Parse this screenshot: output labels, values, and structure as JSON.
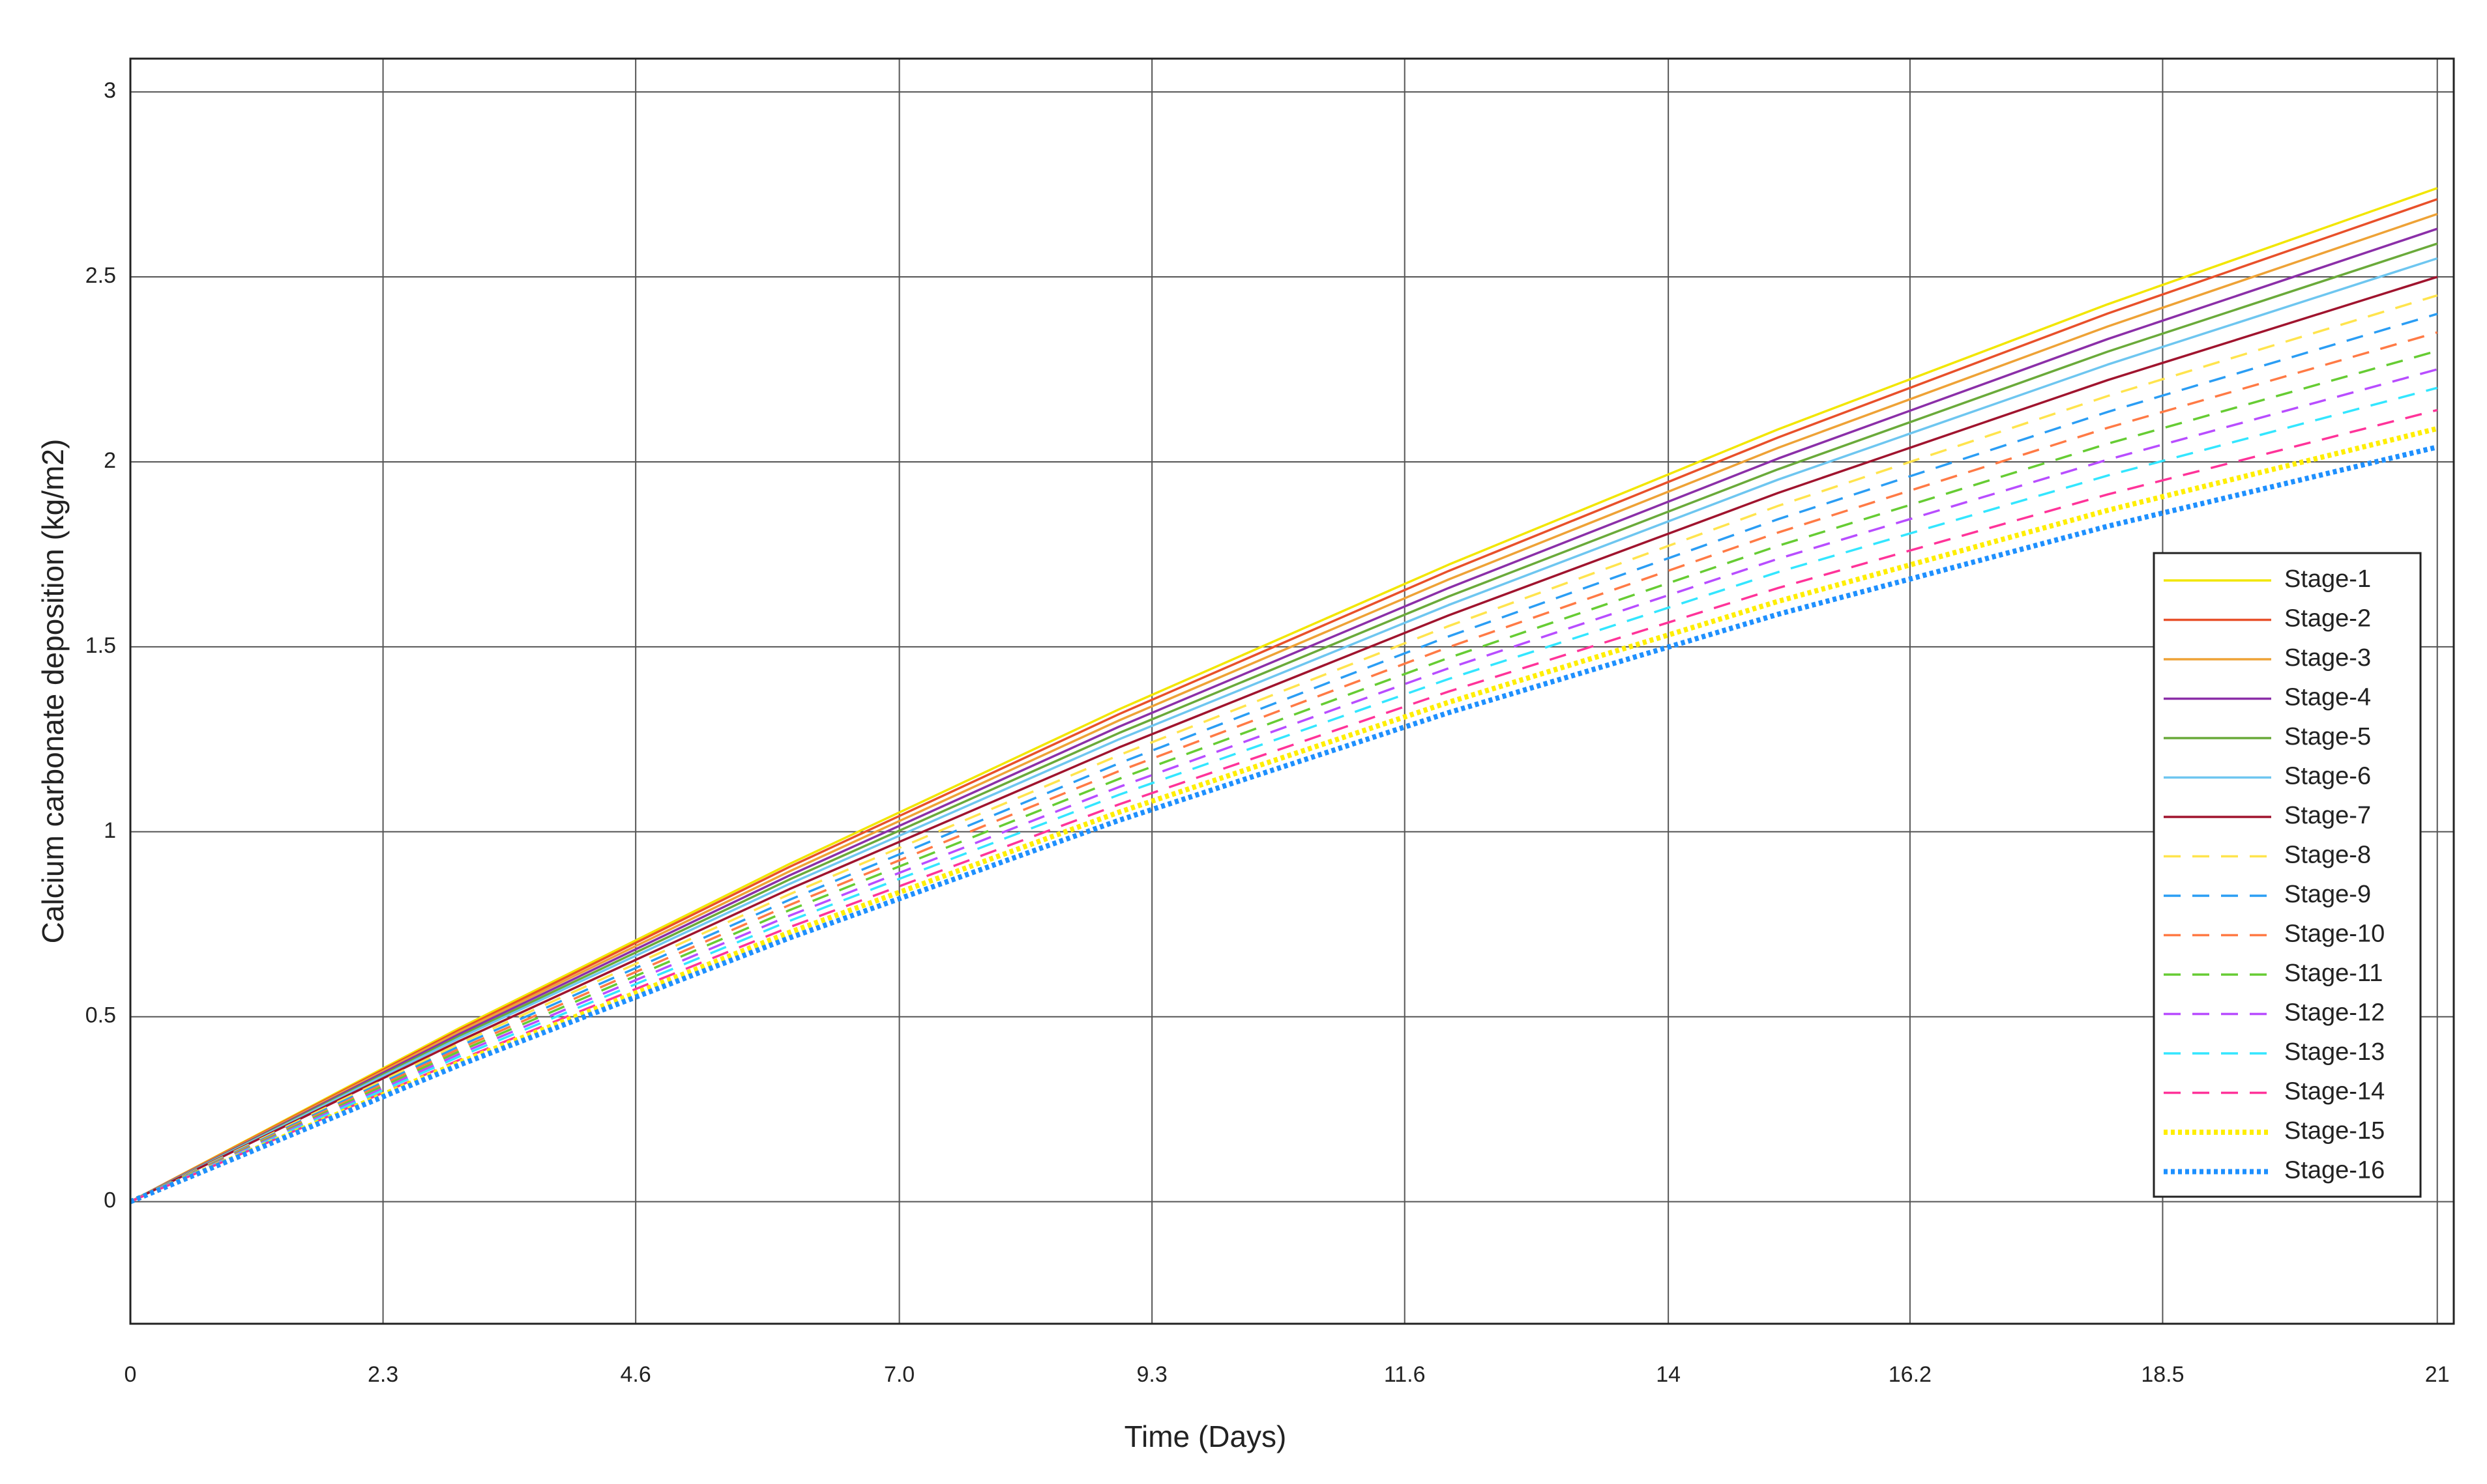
{
  "chart_data": {
    "type": "line",
    "xlabel": "Time (Days)",
    "ylabel": "Calcium carbonate deposition (kg/m2)",
    "x": [
      0,
      3,
      6,
      9,
      12,
      15,
      18,
      21
    ],
    "xlim": [
      0,
      21.15
    ],
    "ylim": [
      -0.33,
      3.09
    ],
    "xticks": [
      0,
      2.3,
      4.6,
      {
        "value": 7,
        "label": "7.0"
      },
      9.3,
      11.6,
      14,
      16.2,
      18.5,
      21
    ],
    "yticks": [
      0,
      0.5,
      1,
      1.5,
      2,
      2.5,
      3
    ],
    "grid": true,
    "legend": "right",
    "series": [
      {
        "name": "Stage-1",
        "color": "#f2e600",
        "style": "solid",
        "values": [
          0,
          0.47,
          0.913,
          1.331,
          1.722,
          2.088,
          2.426,
          2.74
        ]
      },
      {
        "name": "Stage-2",
        "color": "#e8502a",
        "style": "solid",
        "values": [
          0,
          0.465,
          0.905,
          1.318,
          1.705,
          2.066,
          2.401,
          2.71
        ]
      },
      {
        "name": "Stage-3",
        "color": "#eea236",
        "style": "solid",
        "values": [
          0,
          0.46,
          0.893,
          1.301,
          1.682,
          2.038,
          2.366,
          2.67
        ]
      },
      {
        "name": "Stage-4",
        "color": "#8b2fa8",
        "style": "solid",
        "values": [
          0,
          0.454,
          0.882,
          1.284,
          1.659,
          2.009,
          2.332,
          2.63
        ]
      },
      {
        "name": "Stage-5",
        "color": "#6aaa3a",
        "style": "solid",
        "values": [
          0,
          0.448,
          0.871,
          1.267,
          1.636,
          1.98,
          2.298,
          2.59
        ]
      },
      {
        "name": "Stage-6",
        "color": "#6ec6f0",
        "style": "solid",
        "values": [
          0,
          0.443,
          0.859,
          1.25,
          1.613,
          1.952,
          2.263,
          2.55
        ]
      },
      {
        "name": "Stage-7",
        "color": "#a0142e",
        "style": "solid",
        "values": [
          0,
          0.435,
          0.845,
          1.228,
          1.585,
          1.916,
          2.221,
          2.5
        ]
      },
      {
        "name": "Stage-8",
        "color": "#ffe44d",
        "style": "dashed",
        "values": [
          0,
          0.428,
          0.831,
          1.207,
          1.556,
          1.881,
          2.178,
          2.45
        ]
      },
      {
        "name": "Stage-9",
        "color": "#2a9df4",
        "style": "dashed",
        "values": [
          0,
          0.421,
          0.816,
          1.185,
          1.528,
          1.845,
          2.135,
          2.4
        ]
      },
      {
        "name": "Stage-10",
        "color": "#ff7a45",
        "style": "dashed",
        "values": [
          0,
          0.414,
          0.802,
          1.164,
          1.499,
          1.809,
          2.092,
          2.35
        ]
      },
      {
        "name": "Stage-11",
        "color": "#66cc33",
        "style": "dashed",
        "values": [
          0,
          0.407,
          0.788,
          1.143,
          1.47,
          1.773,
          2.049,
          2.3
        ]
      },
      {
        "name": "Stage-12",
        "color": "#b84dff",
        "style": "dashed",
        "values": [
          0,
          0.4,
          0.773,
          1.121,
          1.442,
          1.738,
          2.006,
          2.25
        ]
      },
      {
        "name": "Stage-13",
        "color": "#33e6ff",
        "style": "dashed",
        "values": [
          0,
          0.393,
          0.759,
          1.1,
          1.413,
          1.702,
          1.963,
          2.2
        ]
      },
      {
        "name": "Stage-14",
        "color": "#ff3399",
        "style": "dashed",
        "values": [
          0,
          0.384,
          0.742,
          1.074,
          1.379,
          1.659,
          1.912,
          2.14
        ]
      },
      {
        "name": "Stage-15",
        "color": "#ffee00",
        "style": "dotted",
        "values": [
          0,
          0.377,
          0.728,
          1.053,
          1.35,
          1.623,
          1.869,
          2.09
        ]
      },
      {
        "name": "Stage-16",
        "color": "#1e90ff",
        "style": "dotted",
        "values": [
          0,
          0.37,
          0.713,
          1.031,
          1.322,
          1.588,
          1.826,
          2.04
        ]
      }
    ]
  }
}
